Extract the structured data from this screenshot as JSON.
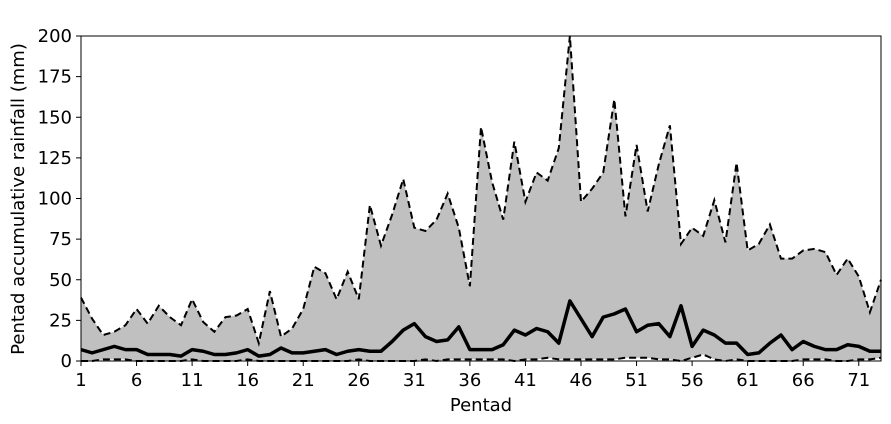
{
  "chart_data": {
    "type": "area",
    "xlabel": "Pentad",
    "ylabel": "Pentad accumulative rainfall (mm)",
    "xlim": [
      1,
      73
    ],
    "ylim": [
      0,
      200
    ],
    "xticks": [
      1,
      6,
      11,
      16,
      21,
      26,
      31,
      36,
      41,
      46,
      51,
      56,
      61,
      66,
      71
    ],
    "yticks": [
      0,
      25,
      50,
      75,
      100,
      125,
      150,
      175,
      200
    ],
    "grid": false,
    "legend": "none",
    "x": [
      1,
      2,
      3,
      4,
      5,
      6,
      7,
      8,
      9,
      10,
      11,
      12,
      13,
      14,
      15,
      16,
      17,
      18,
      19,
      20,
      21,
      22,
      23,
      24,
      25,
      26,
      27,
      28,
      29,
      30,
      31,
      32,
      33,
      34,
      35,
      36,
      37,
      38,
      39,
      40,
      41,
      42,
      43,
      44,
      45,
      46,
      47,
      48,
      49,
      50,
      51,
      52,
      53,
      54,
      55,
      56,
      57,
      58,
      59,
      60,
      61,
      62,
      63,
      64,
      65,
      66,
      67,
      68,
      69,
      70,
      71,
      72,
      73
    ],
    "series": [
      {
        "style": "dashed-black-max",
        "values": [
          39,
          26,
          16,
          18,
          22,
          32,
          23,
          34,
          27,
          22,
          38,
          24,
          18,
          27,
          28,
          32,
          11,
          43,
          15,
          20,
          32,
          58,
          54,
          38,
          55,
          38,
          96,
          71,
          90,
          112,
          82,
          80,
          87,
          103,
          82,
          46,
          144,
          110,
          87,
          135,
          98,
          116,
          111,
          131,
          200,
          98,
          106,
          116,
          161,
          89,
          133,
          92,
          121,
          145,
          72,
          82,
          77,
          99,
          73,
          122,
          68,
          72,
          84,
          63,
          63,
          68,
          69,
          67,
          53,
          63,
          52,
          30,
          50
        ]
      },
      {
        "style": "solid-black-thick-mean",
        "values": [
          7,
          5,
          7,
          9,
          7,
          7,
          4,
          4,
          4,
          3,
          7,
          6,
          4,
          4,
          5,
          7,
          3,
          4,
          8,
          5,
          5,
          6,
          7,
          4,
          6,
          7,
          6,
          6,
          12,
          19,
          23,
          15,
          12,
          13,
          21,
          7,
          7,
          7,
          10,
          19,
          16,
          20,
          18,
          11,
          37,
          26,
          15,
          27,
          29,
          32,
          18,
          22,
          23,
          15,
          34,
          9,
          19,
          16,
          11,
          11,
          4,
          5,
          11,
          16,
          7,
          12,
          9,
          7,
          7,
          10,
          9,
          6,
          6
        ]
      },
      {
        "style": "dashed-black-min",
        "values": [
          0,
          0,
          1,
          1,
          1,
          0,
          0,
          0,
          0,
          0,
          1,
          0,
          0,
          0,
          0,
          1,
          0,
          0,
          0,
          0,
          0,
          0,
          0,
          0,
          0,
          1,
          0,
          0,
          0,
          0,
          0,
          1,
          0,
          1,
          1,
          1,
          1,
          1,
          1,
          0,
          1,
          1,
          2,
          1,
          1,
          1,
          1,
          1,
          1,
          2,
          2,
          2,
          1,
          1,
          0,
          2,
          4,
          1,
          0,
          1,
          0,
          0,
          0,
          0,
          0,
          1,
          1,
          1,
          0,
          0,
          1,
          1,
          2
        ]
      }
    ]
  }
}
